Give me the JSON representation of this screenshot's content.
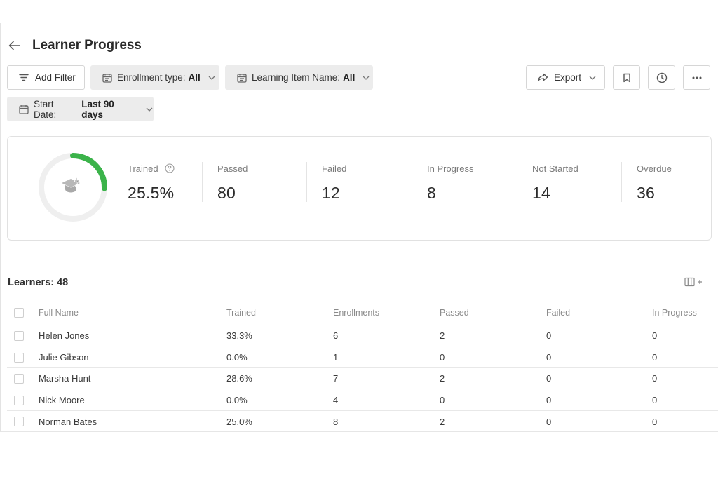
{
  "page": {
    "title": "Learner Progress"
  },
  "filters": {
    "add_filter": "Add Filter",
    "enrollment_type": {
      "label": "Enrollment type:",
      "value": "All"
    },
    "learning_item": {
      "label": "Learning Item Name:",
      "value": "All"
    },
    "start_date": {
      "label": "Start Date:",
      "value": "Last 90 days"
    }
  },
  "toolbar": {
    "export_label": "Export"
  },
  "summary": {
    "trained_fraction": 0.255,
    "accent_color": "#3bb34a",
    "stats": [
      {
        "label": "Trained",
        "value": "25.5%"
      },
      {
        "label": "Passed",
        "value": "80"
      },
      {
        "label": "Failed",
        "value": "12"
      },
      {
        "label": "In Progress",
        "value": "8"
      },
      {
        "label": "Not Started",
        "value": "14"
      },
      {
        "label": "Overdue",
        "value": "36"
      }
    ]
  },
  "learners": {
    "count_label": "Learners: 48",
    "columns": [
      "Full Name",
      "Trained",
      "Enrollments",
      "Passed",
      "Failed",
      "In Progress"
    ],
    "rows": [
      [
        "Helen Jones",
        "33.3%",
        "6",
        "2",
        "0",
        "0"
      ],
      [
        "Julie Gibson",
        "0.0%",
        "1",
        "0",
        "0",
        "0"
      ],
      [
        "Marsha Hunt",
        "28.6%",
        "7",
        "2",
        "0",
        "0"
      ],
      [
        "Nick Moore",
        "0.0%",
        "4",
        "0",
        "0",
        "0"
      ],
      [
        "Norman Bates",
        "25.0%",
        "8",
        "2",
        "0",
        "0"
      ]
    ]
  },
  "icons": {
    "back": "arrow-left-icon",
    "filter": "filter-lines-icon",
    "calendar": "calendar-icon",
    "chevron": "chevron-down-icon",
    "export": "share-arrow-icon",
    "bookmark": "bookmark-icon",
    "history": "clock-icon",
    "more": "more-horizontal-icon",
    "help": "help-circle-icon",
    "trained": "graduation-cap-lightning-icon",
    "columns": "columns-add-icon"
  }
}
